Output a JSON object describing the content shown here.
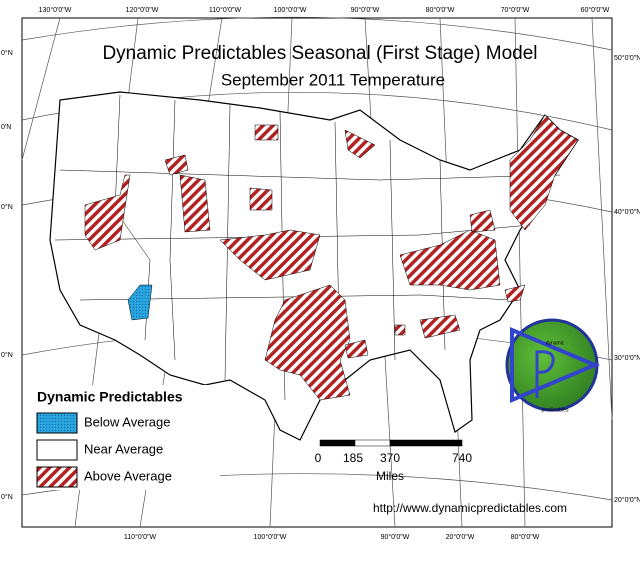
{
  "map": {
    "title": "Dynamic Predictables Seasonal (First Stage) Model",
    "subtitle": "September 2011 Temperature",
    "graticule": {
      "top": [
        "130°0'0\"W",
        "120°0'0\"W",
        "110°0'0\"W",
        "100°0'0\"W",
        "90°0'0\"W",
        "80°0'0\"W",
        "70°0'0\"W",
        "60°0'0\"W"
      ],
      "bottom": [
        "110°0'0\"W",
        "100°0'0\"W",
        "90°0'0\"W",
        "20°0'0\"W",
        "80°0'0\"W"
      ],
      "right": [
        "50°0'0\"N",
        "40°0'0\"N",
        "30°0'0\"N",
        "20°0'0\"N"
      ],
      "left": [
        "0°N",
        "0'N",
        "0°N",
        "0°N",
        "0°N"
      ]
    },
    "legend": {
      "title": "Dynamic Predictables",
      "items": [
        "Below Average",
        "Near Average",
        "Above Average"
      ]
    },
    "scale": {
      "ticks": [
        "0",
        "185",
        "370",
        "740"
      ],
      "unit": "Miles"
    },
    "url": "http://www.dynamicpredictables.com",
    "logo": [
      "dynamic",
      "predictables"
    ]
  }
}
